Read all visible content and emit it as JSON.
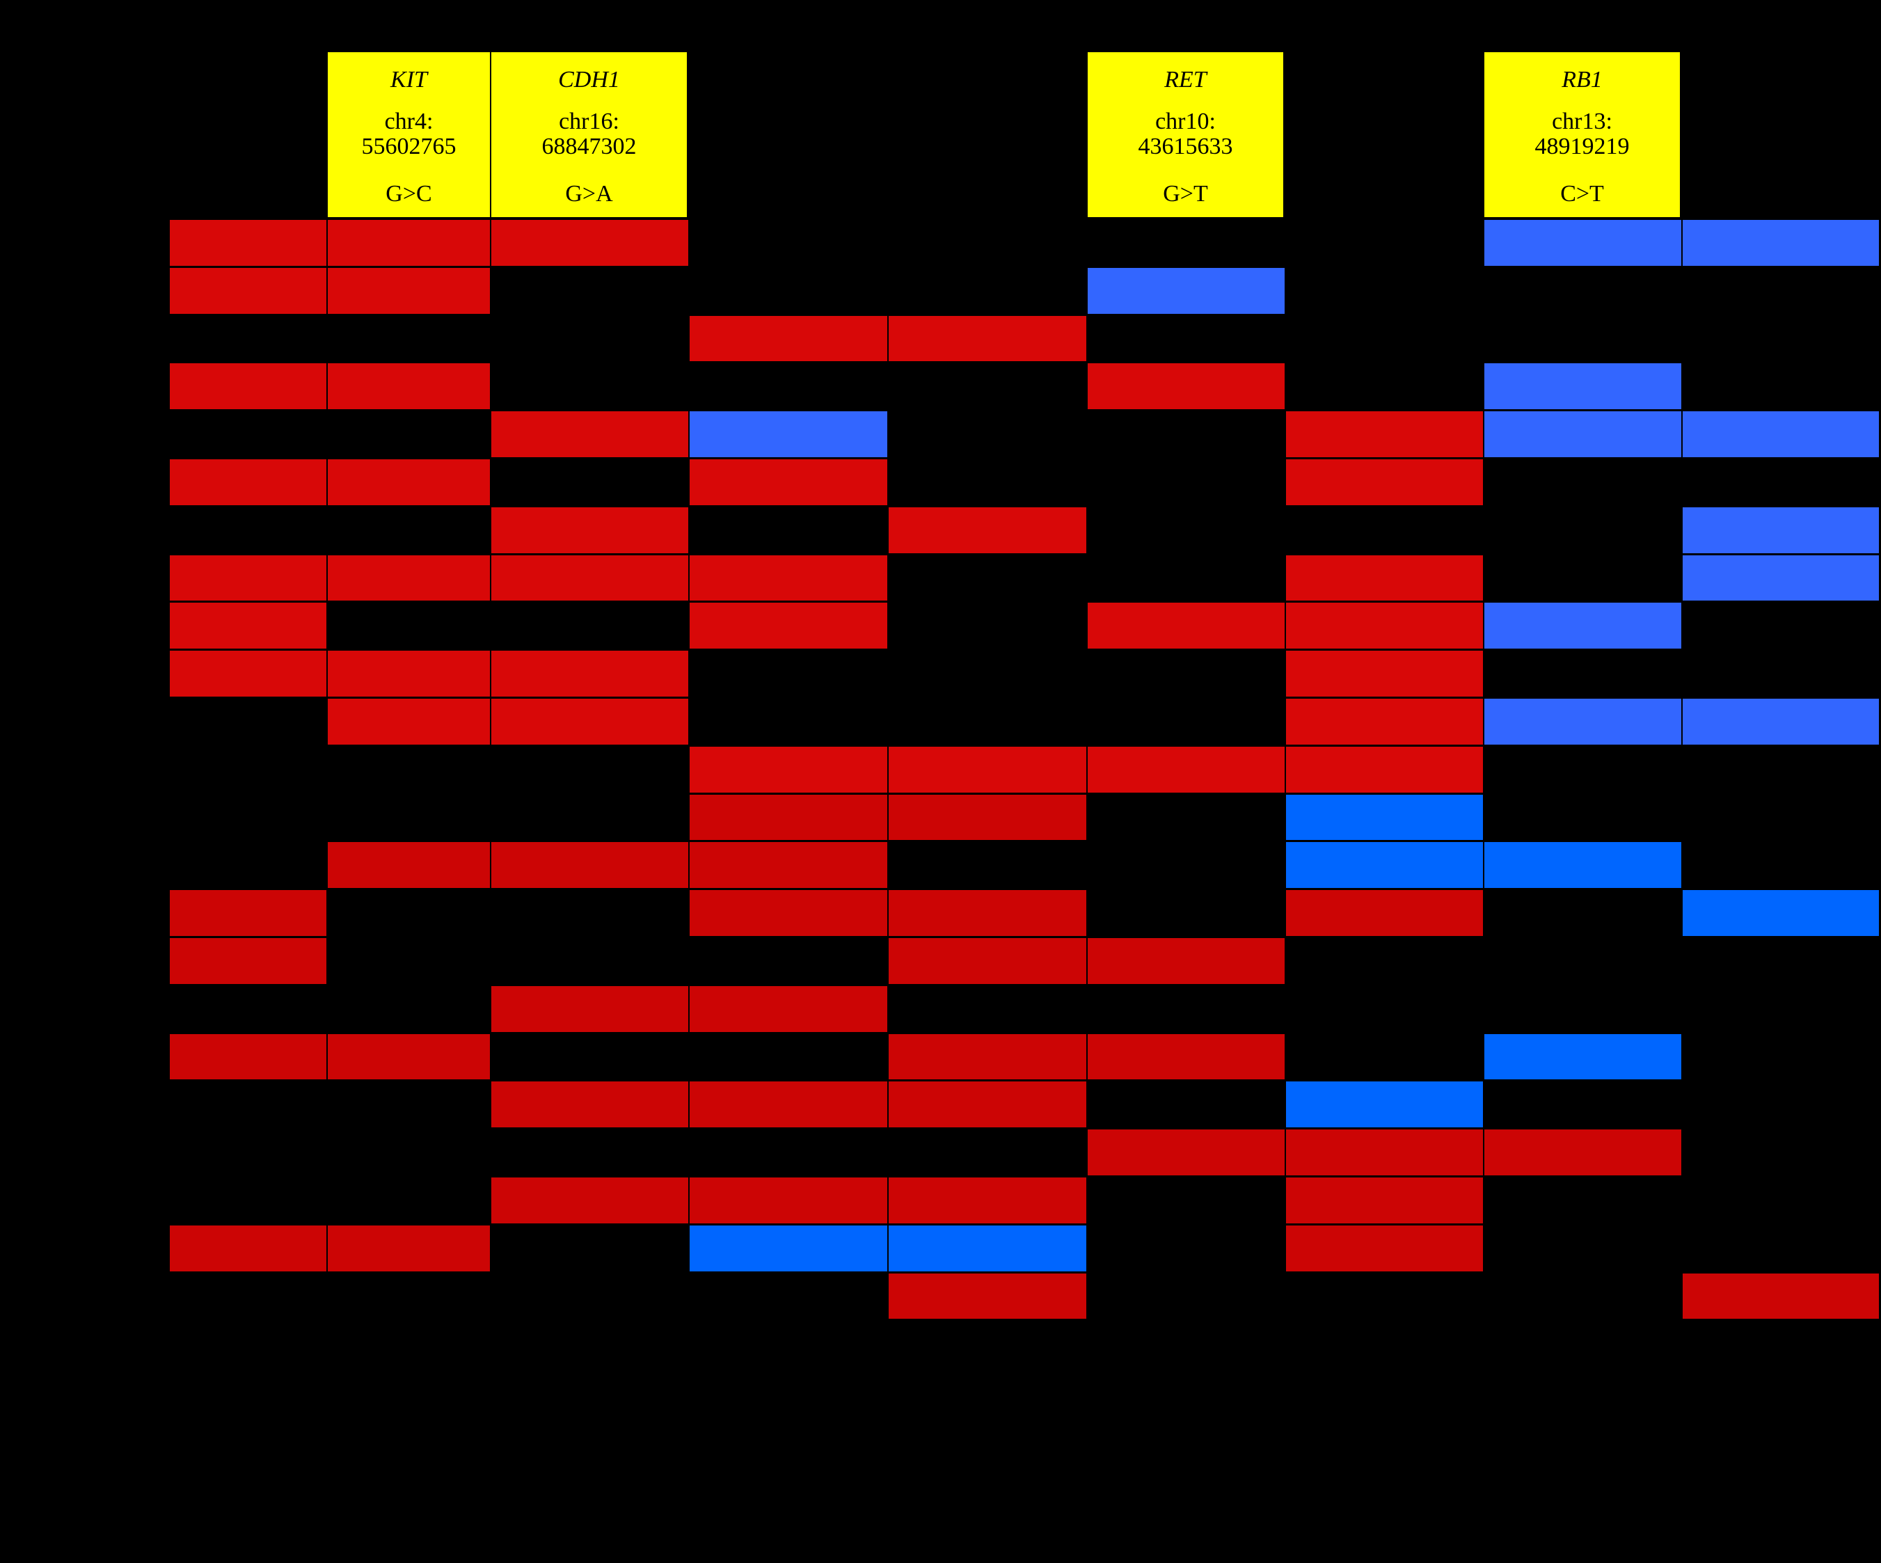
{
  "colors": {
    "background": "#000000",
    "header": "#ffff00",
    "red": "#d80808",
    "red_alt": "#cc0505",
    "blue": "#3366ff",
    "blue_alt": "#0066ff"
  },
  "headers": [
    {
      "col": 1,
      "gene": "KIT",
      "locus": "chr4:\n55602765",
      "locus_line1": "chr4:",
      "locus_line2": "55602765",
      "change": "G>C"
    },
    {
      "col": 2,
      "gene": "CDH1",
      "locus_line1": "chr16:",
      "locus_line2": "68847302",
      "change": "G>A"
    },
    {
      "col": 5,
      "gene": "RET",
      "locus_line1": "chr10:",
      "locus_line2": "43615633",
      "change": "G>T"
    },
    {
      "col": 7,
      "gene": "RB1",
      "locus_line1": "chr13:",
      "locus_line2": "48919219",
      "change": "C>T"
    }
  ],
  "matrix_legend": {
    "R": "red",
    "r": "red_alt",
    "B": "blue",
    "b": "blue_alt",
    ".": "empty"
  },
  "matrix": [
    "RRR....BB",
    "RR...B...",
    "...RR....",
    "RR...R.B.",
    "..RB..RBB",
    "RR.R..R..",
    "..R.R...B",
    "RRRR..R.B",
    "R..R.RRB.",
    "RRR...R..",
    ".RR...RBB",
    "...RRRR..",
    "...rr.b..",
    ".rrr..bb.",
    "r..rr.r.b",
    "r...rr...",
    "..rr.....",
    "rr..rr.b.",
    "..rrr.b..",
    ".....rrr.",
    "..rrr.r..",
    "rr.bb.r..",
    "....r...r"
  ]
}
